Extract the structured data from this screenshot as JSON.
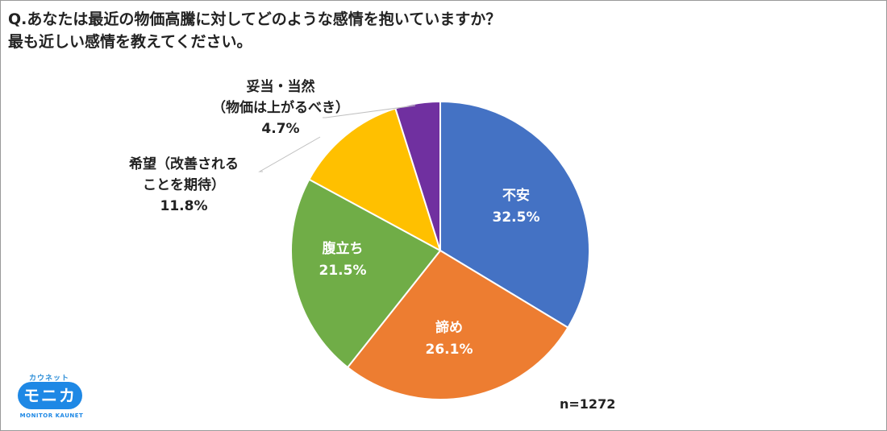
{
  "title": {
    "line1": "Q.あなたは最近の物価高騰に対してどのような感情を抱いていますか？",
    "line2": "最も近しい感情を教えてください。"
  },
  "chart_data": {
    "type": "pie",
    "title": "Q.あなたは最近の物価高騰に対してどのような感情を抱いていますか？ 最も近しい感情を教えてください。",
    "slices": [
      {
        "label": "不安",
        "value": 32.5,
        "value_label": "32.5%",
        "color": "#4472c4"
      },
      {
        "label": "諦め",
        "value": 26.1,
        "value_label": "26.1%",
        "color": "#ed7d31"
      },
      {
        "label": "腹立ち",
        "value": 21.5,
        "value_label": "21.5%",
        "color": "#70ad47"
      },
      {
        "label": "希望（改善されることを期待）",
        "value": 11.8,
        "value_label": "11.8%",
        "color": "#ffc000"
      },
      {
        "label": "妥当・当然（物価は上がるべき）",
        "value": 4.7,
        "value_label": "4.7%",
        "color": "#7030a0"
      }
    ],
    "outside_labels": {
      "kibou": {
        "line1": "希望（改善される",
        "line2": "ことを期待）",
        "value": "11.8%"
      },
      "datou": {
        "line1": "妥当・当然",
        "line2": "（物価は上がるべき）",
        "value": "4.7%"
      }
    },
    "sample_size": "n=1272"
  },
  "logo": {
    "kana": "カウネット",
    "name": "モニカ",
    "sub": "MONITOR KAUNET",
    "color": "#1e88e5"
  }
}
